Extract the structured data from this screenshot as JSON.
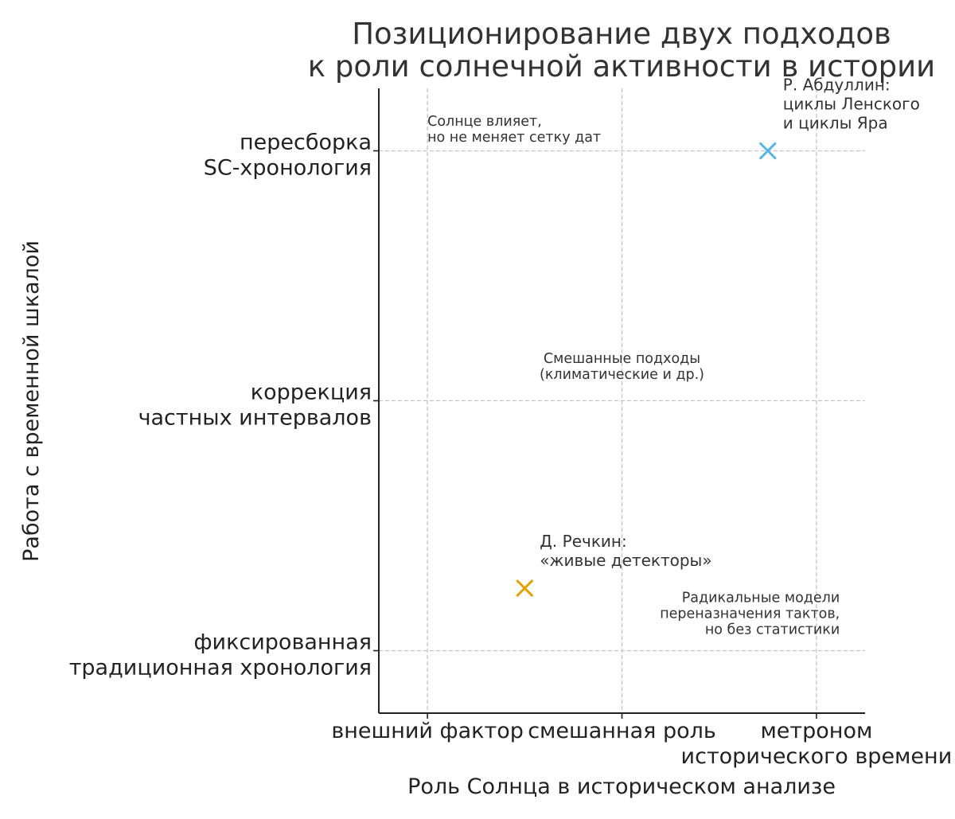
{
  "chart_data": {
    "type": "scatter",
    "title": [
      "Позиционирование двух подходов",
      "к роли солнечной активности в истории"
    ],
    "xlabel": "Роль Солнца в историческом анализе",
    "ylabel": "Работа с временной шкалой",
    "xlim": [
      -0.25,
      2.25
    ],
    "ylim": [
      -0.25,
      2.25
    ],
    "x_ticks": [
      {
        "value": 0,
        "lines": [
          "внешний фактор"
        ]
      },
      {
        "value": 1,
        "lines": [
          "смешанная роль"
        ]
      },
      {
        "value": 2,
        "lines": [
          "метроном",
          "исторического времени"
        ]
      }
    ],
    "y_ticks": [
      {
        "value": 0,
        "lines": [
          "фиксированная",
          "традиционная хронология"
        ]
      },
      {
        "value": 1,
        "lines": [
          "коррекция",
          "частных интервалов"
        ]
      },
      {
        "value": 2,
        "lines": [
          "пересборка",
          "SC-хронология"
        ]
      }
    ],
    "grid": true,
    "points": [
      {
        "x": 0.5,
        "y": 0.25,
        "marker": "x",
        "color": "#E69F00",
        "label": [
          "Д. Речкин:",
          "«живые детекторы»"
        ]
      },
      {
        "x": 1.75,
        "y": 2.0,
        "marker": "x",
        "color": "#56B4E9",
        "label": [
          "Р. Абдуллин:",
          "циклы Ленского",
          "и циклы Яра"
        ]
      }
    ],
    "annotations": [
      {
        "x": 0.0,
        "y": 2.05,
        "anchor": "start",
        "lines": [
          "Солнце влияет,",
          "но не меняет сетку дат"
        ]
      },
      {
        "x": 1.0,
        "y": 1.1,
        "anchor": "middle",
        "lines": [
          "Смешанные подходы",
          "(климатические и др.)"
        ]
      },
      {
        "x": 2.12,
        "y": 0.08,
        "anchor": "end",
        "lines": [
          "Радикальные модели",
          "переназначения тактов,",
          "но без статистики"
        ]
      }
    ]
  }
}
